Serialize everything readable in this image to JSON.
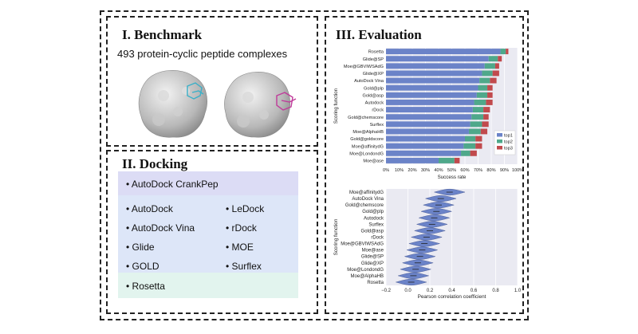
{
  "benchmark": {
    "title": "I. Benchmark",
    "subtitle": "493 protein-cyclic peptide complexes"
  },
  "docking": {
    "title": "II. Docking",
    "top_item": "AutoDock CrankPep",
    "left_items": [
      "AutoDock",
      "AutoDock Vina",
      "Glide",
      "GOLD"
    ],
    "right_items": [
      "LeDock",
      "rDock",
      "MOE",
      "Surflex"
    ],
    "bottom_item": "Rosetta",
    "colors": {
      "top": "#dcdcf5",
      "middle": "#dde6f8",
      "bottom": "#e2f4ee"
    }
  },
  "evaluation": {
    "title": "III. Evaluation"
  },
  "chart_data": [
    {
      "type": "bar",
      "orientation": "horizontal-stacked",
      "ylabel": "Scoring function",
      "xlabel": "Success rate",
      "xlim": [
        0,
        100
      ],
      "xticks": [
        "0%",
        "10%",
        "20%",
        "30%",
        "40%",
        "50%",
        "60%",
        "70%",
        "80%",
        "90%",
        "100%"
      ],
      "categories": [
        "Rosetta",
        "Glide@SP",
        "Moe@GBVIWSAdG",
        "Glide@XP",
        "AutoDock Vina",
        "Gold@plp",
        "Gold@asp",
        "Autodock",
        "rDock",
        "Gold@chemscore",
        "Surflex",
        "Moe@AlphaHB",
        "Gold@goldscore",
        "Moe@affinitydG",
        "Moe@LondondG",
        "Moe@ase"
      ],
      "series": [
        {
          "name": "top1",
          "color": "#6b83c8",
          "values": [
            87,
            78,
            75,
            73,
            71,
            70,
            69,
            67,
            66,
            65,
            64,
            63,
            60,
            59,
            57,
            40
          ]
        },
        {
          "name": "top2",
          "color": "#4fa88a",
          "values": [
            4,
            7,
            8,
            8,
            8,
            7,
            8,
            9,
            8,
            9,
            9,
            9,
            8,
            9,
            7,
            12
          ]
        },
        {
          "name": "top3",
          "color": "#c14a4d",
          "values": [
            2,
            3,
            3,
            5,
            5,
            4,
            4,
            5,
            5,
            4,
            5,
            5,
            5,
            5,
            5,
            4
          ]
        }
      ],
      "legend": "bottom-right"
    },
    {
      "type": "violin",
      "ylabel": "Scoring function",
      "xlabel": "Pearson correlation coefficient",
      "xlim": [
        -0.2,
        1.0
      ],
      "xticks": [
        "−0.2",
        "0.0",
        "0.2",
        "0.4",
        "0.6",
        "0.8",
        "1.0"
      ],
      "categories": [
        "Moe@affinitydG",
        "AutoDock Vina",
        "Gold@chemscore",
        "Gold@plp",
        "Autodock",
        "Surflex",
        "Gold@asp",
        "rDock",
        "Moe@GBVIWSAdG",
        "Moe@ase",
        "Glide@SP",
        "Glide@XP",
        "Moe@LondondG",
        "Moe@AlphaHB",
        "Rosetta"
      ],
      "medians": [
        0.38,
        0.3,
        0.28,
        0.26,
        0.24,
        0.22,
        0.2,
        0.17,
        0.15,
        0.13,
        0.11,
        0.09,
        0.07,
        0.05,
        0.03
      ],
      "color": "#6b83c8"
    }
  ]
}
